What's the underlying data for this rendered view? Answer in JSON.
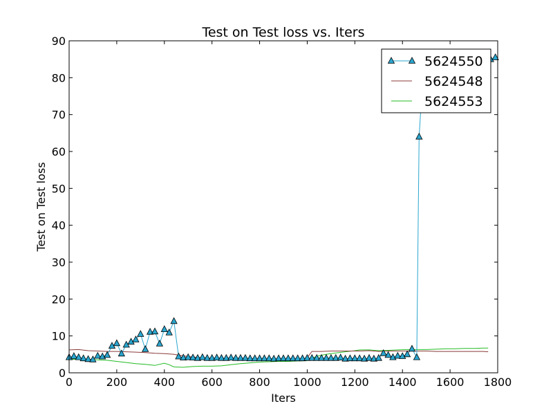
{
  "chart_data": {
    "type": "line",
    "title": "Test on Test loss  vs. Iters",
    "xlabel": "Iters",
    "ylabel": "Test on Test loss",
    "xlim": [
      0,
      1800
    ],
    "ylim": [
      0,
      90
    ],
    "xticks": [
      0,
      200,
      400,
      600,
      800,
      1000,
      1200,
      1400,
      1600,
      1800
    ],
    "yticks": [
      0,
      10,
      20,
      30,
      40,
      50,
      60,
      70,
      80,
      90
    ],
    "grid": false,
    "legend_position": "top-right",
    "series": [
      {
        "name": "5624550",
        "color": "#2aa6cf",
        "marker": "triangle",
        "x": [
          0,
          20,
          40,
          60,
          80,
          100,
          120,
          140,
          160,
          180,
          200,
          220,
          240,
          260,
          280,
          300,
          320,
          340,
          360,
          380,
          400,
          420,
          440,
          460,
          480,
          500,
          520,
          540,
          560,
          580,
          600,
          620,
          640,
          660,
          680,
          700,
          720,
          740,
          760,
          780,
          800,
          820,
          840,
          860,
          880,
          900,
          920,
          940,
          960,
          980,
          1000,
          1020,
          1040,
          1060,
          1080,
          1100,
          1120,
          1140,
          1160,
          1180,
          1200,
          1220,
          1240,
          1260,
          1280,
          1300,
          1320,
          1340,
          1360,
          1380,
          1400,
          1420,
          1440,
          1460,
          1470,
          1490,
          1510,
          1530,
          1550,
          1570,
          1590,
          1610,
          1630,
          1650,
          1670,
          1690,
          1710,
          1730,
          1750,
          1770,
          1790
        ],
        "y": [
          4.2,
          4.5,
          4.2,
          3.9,
          3.7,
          3.6,
          4.6,
          4.4,
          4.8,
          7.3,
          8.0,
          5.2,
          7.6,
          8.4,
          9.0,
          10.5,
          6.4,
          11.1,
          11.2,
          7.9,
          11.8,
          10.9,
          14.0,
          4.4,
          4.1,
          4.2,
          4.1,
          4.0,
          4.2,
          4.0,
          4.0,
          4.1,
          4.0,
          4.0,
          4.1,
          4.0,
          4.0,
          4.0,
          3.9,
          3.9,
          3.9,
          3.9,
          3.9,
          3.8,
          3.9,
          3.9,
          3.9,
          3.9,
          3.9,
          3.9,
          4.0,
          4.0,
          4.0,
          4.0,
          4.0,
          4.0,
          4.0,
          4.1,
          3.8,
          3.9,
          3.9,
          3.9,
          3.8,
          4.0,
          3.8,
          4.0,
          5.3,
          4.8,
          4.2,
          4.6,
          4.5,
          5.0,
          6.5,
          4.2,
          64.0,
          85.0,
          85.0,
          85.0,
          85.0,
          85.0,
          85.0,
          85.0,
          85.0,
          85.0,
          85.0,
          85.0,
          85.0,
          85.0,
          85.0,
          85.0,
          85.5
        ]
      },
      {
        "name": "5624548",
        "color": "#8b3a3a",
        "marker": "none",
        "x": [
          0,
          40,
          80,
          120,
          160,
          200,
          240,
          280,
          320,
          360,
          400,
          440,
          480,
          520,
          560,
          600,
          640,
          680,
          720,
          760,
          800,
          840,
          880,
          920,
          960,
          1000,
          1020,
          1060,
          1100,
          1140,
          1180,
          1220,
          1260,
          1300,
          1340,
          1380,
          1420,
          1460,
          1500,
          1540,
          1580,
          1620,
          1660,
          1700,
          1740,
          1760
        ],
        "y": [
          6.2,
          6.3,
          6.0,
          5.9,
          5.8,
          5.8,
          5.7,
          5.6,
          5.5,
          5.3,
          5.2,
          5.0,
          4.6,
          4.3,
          4.1,
          4.0,
          3.9,
          3.7,
          3.6,
          3.5,
          3.4,
          3.4,
          3.4,
          3.4,
          3.5,
          4.1,
          5.8,
          5.8,
          5.9,
          5.9,
          5.9,
          5.9,
          6.0,
          5.8,
          5.9,
          5.9,
          5.9,
          5.9,
          5.9,
          5.8,
          5.8,
          5.8,
          5.8,
          5.8,
          5.8,
          5.7
        ]
      },
      {
        "name": "5624553",
        "color": "#22bb22",
        "marker": "none",
        "x": [
          0,
          40,
          80,
          120,
          160,
          200,
          240,
          280,
          320,
          360,
          400,
          420,
          440,
          480,
          520,
          560,
          600,
          640,
          680,
          720,
          760,
          800,
          840,
          880,
          920,
          960,
          1000,
          1040,
          1080,
          1120,
          1160,
          1200,
          1220,
          1260,
          1300,
          1340,
          1380,
          1420,
          1460,
          1500,
          1540,
          1580,
          1620,
          1660,
          1700,
          1740,
          1760
        ],
        "y": [
          3.6,
          3.7,
          3.7,
          3.5,
          3.4,
          3.1,
          2.8,
          2.5,
          2.3,
          2.0,
          2.6,
          2.2,
          1.6,
          1.5,
          1.7,
          1.8,
          1.8,
          1.9,
          2.2,
          2.5,
          2.7,
          2.9,
          3.0,
          3.1,
          3.1,
          3.2,
          3.3,
          4.5,
          5.0,
          5.4,
          5.7,
          6.0,
          6.2,
          6.2,
          6.0,
          6.1,
          6.2,
          6.3,
          6.3,
          6.3,
          6.4,
          6.5,
          6.5,
          6.6,
          6.6,
          6.7,
          6.7
        ]
      }
    ]
  }
}
